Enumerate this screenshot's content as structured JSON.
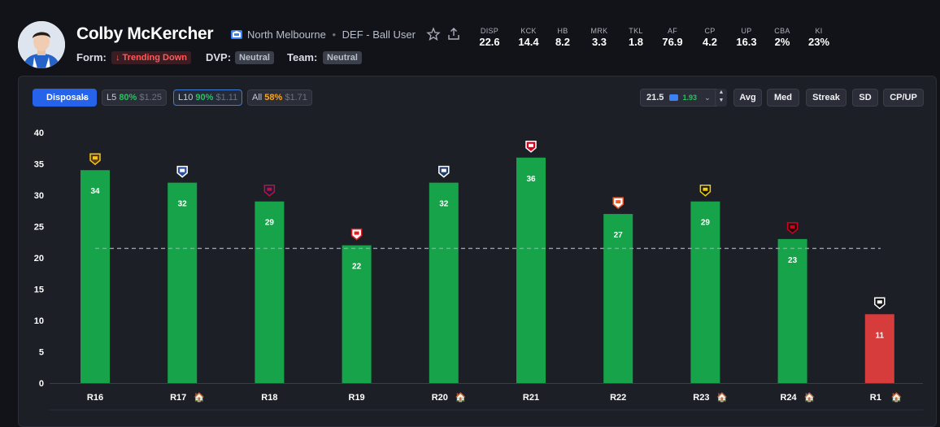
{
  "player": {
    "name": "Colby McKercher",
    "team": "North Melbourne",
    "separator": "•",
    "position": "DEF - Ball User",
    "form_label": "Form:",
    "form_value": "↓ Trending Down",
    "dvp_label": "DVP:",
    "dvp_value": "Neutral",
    "team_label": "Team:",
    "team_value": "Neutral"
  },
  "stats": [
    {
      "label": "DISP",
      "value": "22.6"
    },
    {
      "label": "KCK",
      "value": "14.4"
    },
    {
      "label": "HB",
      "value": "8.2"
    },
    {
      "label": "MRK",
      "value": "3.3"
    },
    {
      "label": "TKL",
      "value": "1.8"
    },
    {
      "label": "AF",
      "value": "76.9"
    },
    {
      "label": "CP",
      "value": "4.2"
    },
    {
      "label": "UP",
      "value": "16.3"
    },
    {
      "label": "CBA",
      "value": "2%"
    },
    {
      "label": "KI",
      "value": "23%"
    }
  ],
  "controls": {
    "stat_select": "Disposals",
    "l5": {
      "label": "L5",
      "pct": "80%",
      "price": "$1.25"
    },
    "l10": {
      "label": "L10",
      "pct": "90%",
      "price": "$1.11"
    },
    "all": {
      "label": "All",
      "pct": "58%",
      "price": "$1.71"
    },
    "line_value": "21.5",
    "line_odds": "1.93",
    "buttons": [
      "Avg",
      "Med",
      "Streak",
      "SD",
      "CP/UP"
    ]
  },
  "colors": {
    "over": "#16a34a",
    "under": "#d63c3c",
    "accent": "#2563eb"
  },
  "chart_data": {
    "type": "bar",
    "categories": [
      "R16",
      "R17",
      "R18",
      "R19",
      "R20",
      "R21",
      "R22",
      "R23",
      "R24",
      "R1"
    ],
    "home_icon": "🏠",
    "home_games": [
      false,
      true,
      false,
      false,
      true,
      false,
      false,
      true,
      true,
      true
    ],
    "opponent_icons": [
      "hawthorn-logo-icon",
      "western-bulldogs-logo-icon",
      "melbourne-logo-icon",
      "sydney-logo-icon",
      "geelong-logo-icon",
      "st-kilda-logo-icon",
      "gws-giants-logo-icon",
      "richmond-logo-icon",
      "essendon-logo-icon",
      "port-adelaide-logo-icon"
    ],
    "values": [
      34,
      32,
      29,
      22,
      32,
      36,
      27,
      29,
      23,
      11
    ],
    "line": 21.5,
    "ylim": [
      0,
      40
    ],
    "yticks": [
      0,
      5,
      10,
      15,
      20,
      25,
      30,
      35,
      40
    ],
    "ylabel": "",
    "xlabel": "",
    "title": ""
  }
}
